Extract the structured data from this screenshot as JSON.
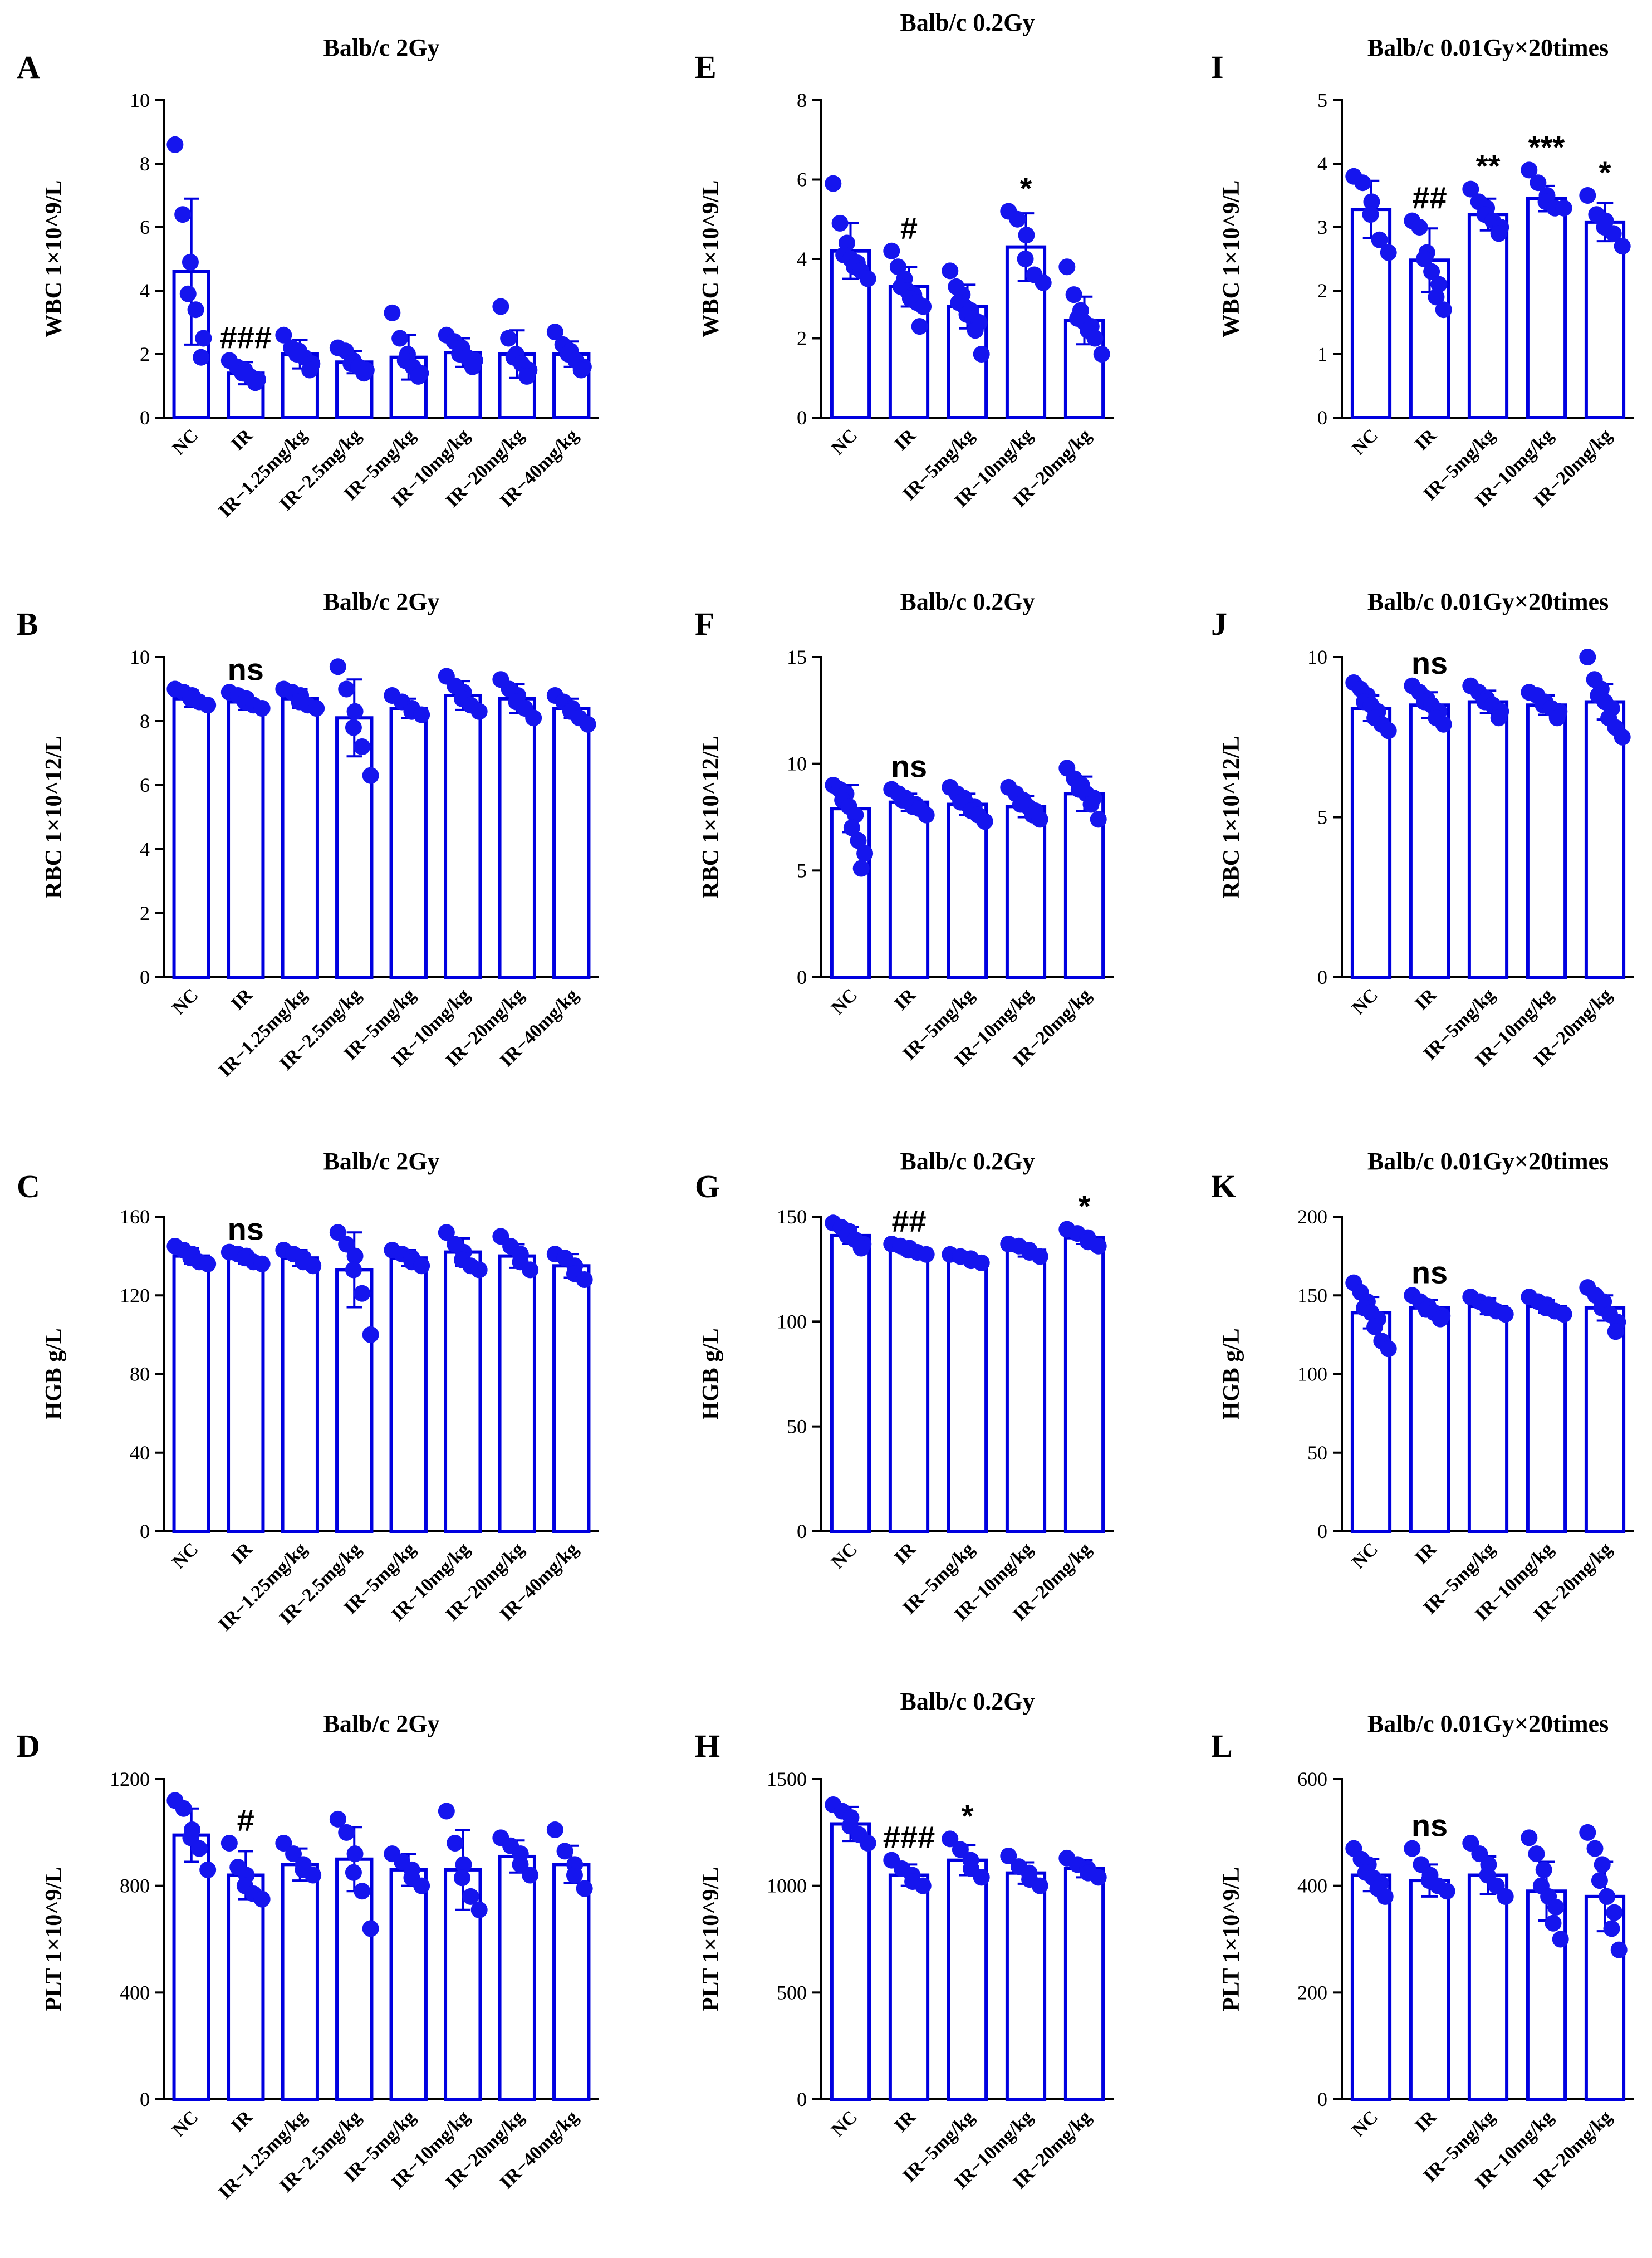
{
  "chart_data": [
    {
      "panel": "A",
      "type": "bar",
      "title": "Balb/c 2Gy",
      "ylabel": "WBC 1×10^9/L",
      "ylim": [
        0,
        10
      ],
      "yticks": [
        "0",
        "2",
        "4",
        "6",
        "8",
        "10"
      ],
      "categories": [
        "NC",
        "IR",
        "IR−1.25mg/kg",
        "IR−2.5mg/kg",
        "IR−5mg/kg",
        "IR−10mg/kg",
        "IR−20mg/kg",
        "IR−40mg/kg"
      ],
      "values": [
        4.6,
        1.4,
        2.0,
        1.75,
        1.9,
        2.05,
        2.0,
        2.0
      ],
      "errors": [
        2.3,
        0.35,
        0.45,
        0.35,
        0.7,
        0.45,
        0.75,
        0.4
      ],
      "points": [
        [
          8.6,
          6.4,
          4.9,
          3.9,
          3.4,
          2.5,
          1.9
        ],
        [
          1.8,
          1.6,
          1.5,
          1.4,
          1.3,
          1.2,
          1.1
        ],
        [
          2.6,
          2.2,
          2.1,
          2.0,
          1.9,
          1.7,
          1.5
        ],
        [
          2.2,
          2.1,
          1.8,
          1.7,
          1.6,
          1.5,
          1.4
        ],
        [
          3.3,
          2.5,
          2.0,
          1.8,
          1.6,
          1.4,
          1.3
        ],
        [
          2.6,
          2.4,
          2.2,
          2.0,
          1.9,
          1.8,
          1.6
        ],
        [
          3.5,
          2.5,
          2.0,
          1.9,
          1.7,
          1.5,
          1.3
        ],
        [
          2.7,
          2.3,
          2.1,
          2.0,
          1.8,
          1.6,
          1.5
        ]
      ],
      "annotations": [
        {
          "category": "IR",
          "text": "###"
        }
      ]
    },
    {
      "panel": "E",
      "type": "bar",
      "title": "Balb/c 0.2Gy",
      "ylabel": "WBC 1×10^9/L",
      "ylim": [
        0,
        8
      ],
      "yticks": [
        "0",
        "2",
        "4",
        "6",
        "8"
      ],
      "categories": [
        "NC",
        "IR",
        "IR−5mg/kg",
        "IR−10mg/kg",
        "IR−20mg/kg"
      ],
      "values": [
        4.2,
        3.3,
        2.8,
        4.3,
        2.45
      ],
      "errors": [
        0.7,
        0.5,
        0.55,
        0.85,
        0.6
      ],
      "points": [
        [
          5.9,
          4.9,
          4.4,
          4.1,
          4.0,
          3.9,
          3.8,
          3.7,
          3.5
        ],
        [
          4.2,
          3.8,
          3.5,
          3.3,
          3.2,
          3.1,
          3.0,
          2.9,
          2.8,
          2.3
        ],
        [
          3.7,
          3.3,
          3.1,
          2.9,
          2.8,
          2.7,
          2.6,
          2.5,
          2.4,
          2.2,
          1.6
        ],
        [
          5.2,
          5.0,
          4.6,
          4.0,
          3.6,
          3.4
        ],
        [
          3.8,
          3.1,
          2.7,
          2.5,
          2.4,
          2.3,
          2.2,
          2.0,
          1.6
        ]
      ],
      "annotations": [
        {
          "category": "IR",
          "text": "#"
        },
        {
          "category": "IR−10mg/kg",
          "text": "*"
        }
      ]
    },
    {
      "panel": "I",
      "type": "bar",
      "title": "Balb/c 0.01Gy×20times",
      "ylabel": "WBC 1×10^9/L",
      "ylim": [
        0,
        5
      ],
      "yticks": [
        "0",
        "1",
        "2",
        "3",
        "4",
        "5"
      ],
      "categories": [
        "NC",
        "IR",
        "IR−5mg/kg",
        "IR−10mg/kg",
        "IR−20mg/kg"
      ],
      "values": [
        3.28,
        2.48,
        3.2,
        3.45,
        3.08
      ],
      "errors": [
        0.45,
        0.5,
        0.25,
        0.2,
        0.3
      ],
      "points": [
        [
          3.8,
          3.7,
          3.4,
          3.2,
          2.8,
          2.6
        ],
        [
          3.1,
          3.0,
          2.6,
          2.5,
          2.3,
          2.1,
          1.9,
          1.7
        ],
        [
          3.6,
          3.4,
          3.3,
          3.2,
          3.1,
          3.0,
          2.9
        ],
        [
          3.9,
          3.7,
          3.5,
          3.4,
          3.3,
          3.3
        ],
        [
          3.5,
          3.2,
          3.1,
          3.0,
          2.9,
          2.7
        ]
      ],
      "annotations": [
        {
          "category": "IR",
          "text": "##"
        },
        {
          "category": "IR−5mg/kg",
          "text": "**"
        },
        {
          "category": "IR−10mg/kg",
          "text": "***"
        },
        {
          "category": "IR−20mg/kg",
          "text": "*"
        }
      ]
    },
    {
      "panel": "B",
      "type": "bar",
      "title": "Balb/c 2Gy",
      "ylabel": "RBC 1×10^12/L",
      "ylim": [
        0,
        10
      ],
      "yticks": [
        "0",
        "2",
        "4",
        "6",
        "8",
        "10"
      ],
      "categories": [
        "NC",
        "IR",
        "IR−1.25mg/kg",
        "IR−2.5mg/kg",
        "IR−5mg/kg",
        "IR−10mg/kg",
        "IR−20mg/kg",
        "IR−40mg/kg"
      ],
      "values": [
        8.7,
        8.6,
        8.7,
        8.1,
        8.4,
        8.8,
        8.7,
        8.4
      ],
      "errors": [
        0.25,
        0.25,
        0.3,
        1.2,
        0.3,
        0.45,
        0.45,
        0.3
      ],
      "points": [
        [
          9.0,
          8.9,
          8.8,
          8.7,
          8.6,
          8.5
        ],
        [
          8.9,
          8.8,
          8.7,
          8.6,
          8.5,
          8.4
        ],
        [
          9.0,
          8.9,
          8.8,
          8.6,
          8.5,
          8.4
        ],
        [
          9.7,
          9.0,
          8.3,
          7.8,
          7.2,
          6.3
        ],
        [
          8.8,
          8.6,
          8.4,
          8.3,
          8.2
        ],
        [
          9.4,
          9.1,
          8.9,
          8.7,
          8.5,
          8.3
        ],
        [
          9.3,
          9.0,
          8.8,
          8.6,
          8.4,
          8.1
        ],
        [
          8.8,
          8.6,
          8.4,
          8.3,
          8.1,
          7.9
        ]
      ],
      "annotations": [
        {
          "category": "IR",
          "text": "ns"
        }
      ]
    },
    {
      "panel": "F",
      "type": "bar",
      "title": "Balb/c 0.2Gy",
      "ylabel": "RBC 1×10^12/L",
      "ylim": [
        0,
        15
      ],
      "yticks": [
        "0",
        "5",
        "10",
        "15"
      ],
      "categories": [
        "NC",
        "IR",
        "IR−5mg/kg",
        "IR−10mg/kg",
        "IR−20mg/kg"
      ],
      "values": [
        7.9,
        8.2,
        8.1,
        8.0,
        8.6
      ],
      "errors": [
        1.1,
        0.4,
        0.5,
        0.5,
        0.8
      ],
      "points": [
        [
          9.0,
          8.8,
          8.6,
          8.3,
          8.0,
          7.6,
          7.0,
          6.4,
          5.8,
          5.1
        ],
        [
          8.8,
          8.6,
          8.4,
          8.3,
          8.2,
          8.1,
          8.0,
          7.9,
          7.6
        ],
        [
          8.9,
          8.6,
          8.4,
          8.2,
          8.1,
          8.0,
          7.8,
          7.6,
          7.3
        ],
        [
          8.9,
          8.6,
          8.3,
          8.1,
          8.0,
          7.8,
          7.6,
          7.4
        ],
        [
          9.8,
          9.3,
          9.0,
          8.8,
          8.6,
          8.4,
          8.1,
          7.4
        ]
      ],
      "annotations": [
        {
          "category": "IR",
          "text": "ns"
        }
      ]
    },
    {
      "panel": "J",
      "type": "bar",
      "title": "Balb/c 0.01Gy×20times",
      "ylabel": "RBC 1×10^12/L",
      "ylim": [
        0,
        10
      ],
      "yticks": [
        "0",
        "5",
        "10"
      ],
      "categories": [
        "NC",
        "IR",
        "IR−5mg/kg",
        "IR−10mg/kg",
        "IR−20mg/kg"
      ],
      "values": [
        8.4,
        8.5,
        8.6,
        8.5,
        8.6
      ],
      "errors": [
        0.4,
        0.4,
        0.35,
        0.3,
        0.55
      ],
      "points": [
        [
          9.2,
          9.0,
          8.8,
          8.6,
          8.5,
          8.3,
          8.1,
          7.9,
          7.7
        ],
        [
          9.1,
          8.9,
          8.7,
          8.6,
          8.5,
          8.3,
          8.1,
          7.9
        ],
        [
          9.1,
          8.9,
          8.7,
          8.6,
          8.5,
          8.3,
          8.1
        ],
        [
          8.9,
          8.8,
          8.6,
          8.5,
          8.4,
          8.3,
          8.1
        ],
        [
          10.0,
          9.3,
          9.0,
          8.8,
          8.6,
          8.4,
          8.1,
          7.8,
          7.5
        ]
      ],
      "annotations": [
        {
          "category": "IR",
          "text": "ns"
        }
      ]
    },
    {
      "panel": "C",
      "type": "bar",
      "title": "Balb/c 2Gy",
      "ylabel": "HGB g/L",
      "ylim": [
        0,
        160
      ],
      "yticks": [
        "0",
        "40",
        "80",
        "120",
        "160"
      ],
      "categories": [
        "NC",
        "IR",
        "IR−1.25mg/kg",
        "IR−2.5mg/kg",
        "IR−5mg/kg",
        "IR−10mg/kg",
        "IR−20mg/kg",
        "IR−40mg/kg"
      ],
      "values": [
        140,
        139,
        139,
        133,
        139,
        142,
        140,
        135
      ],
      "errors": [
        4,
        3,
        4,
        19,
        4,
        7,
        6,
        6
      ],
      "points": [
        [
          145,
          143,
          141,
          139,
          137,
          136
        ],
        [
          142,
          141,
          140,
          139,
          137,
          136
        ],
        [
          143,
          141,
          139,
          137,
          135
        ],
        [
          152,
          146,
          140,
          133,
          121,
          100
        ],
        [
          143,
          141,
          139,
          137,
          135
        ],
        [
          152,
          146,
          142,
          138,
          135,
          133
        ],
        [
          150,
          145,
          141,
          137,
          133
        ],
        [
          141,
          139,
          135,
          131,
          128
        ]
      ],
      "annotations": [
        {
          "category": "IR",
          "text": "ns"
        }
      ]
    },
    {
      "panel": "G",
      "type": "bar",
      "title": "Balb/c 0.2Gy",
      "ylabel": "HGB g/L",
      "ylim": [
        0,
        150
      ],
      "yticks": [
        "0",
        "50",
        "100",
        "150"
      ],
      "categories": [
        "NC",
        "IR",
        "IR−5mg/kg",
        "IR−10mg/kg",
        "IR−20mg/kg"
      ],
      "values": [
        141,
        134,
        130,
        134,
        140
      ],
      "errors": [
        4,
        2,
        2,
        3,
        3
      ],
      "points": [
        [
          147,
          145,
          143,
          141,
          139,
          137,
          135
        ],
        [
          137,
          136,
          135,
          134,
          133,
          132
        ],
        [
          132,
          131,
          130,
          129,
          128
        ],
        [
          137,
          136,
          134,
          133,
          131
        ],
        [
          144,
          142,
          140,
          138,
          136
        ]
      ],
      "annotations": [
        {
          "category": "IR",
          "text": "##"
        },
        {
          "category": "IR−20mg/kg",
          "text": "*"
        }
      ]
    },
    {
      "panel": "K",
      "type": "bar",
      "title": "Balb/c 0.01Gy×20times",
      "ylabel": "HGB g/L",
      "ylim": [
        0,
        200
      ],
      "yticks": [
        "0",
        "50",
        "100",
        "150",
        "200"
      ],
      "categories": [
        "NC",
        "IR",
        "IR−5mg/kg",
        "IR−10mg/kg",
        "IR−20mg/kg"
      ],
      "values": [
        139,
        142,
        143,
        143,
        142
      ],
      "errors": [
        10,
        5,
        5,
        4,
        8
      ],
      "points": [
        [
          158,
          152,
          146,
          142,
          139,
          135,
          130,
          121,
          116
        ],
        [
          150,
          146,
          143,
          141,
          139,
          137,
          135
        ],
        [
          149,
          146,
          144,
          142,
          140,
          138
        ],
        [
          149,
          146,
          144,
          142,
          140,
          138
        ],
        [
          155,
          150,
          146,
          142,
          138,
          133,
          127
        ]
      ],
      "annotations": [
        {
          "category": "IR",
          "text": "ns"
        }
      ]
    },
    {
      "panel": "D",
      "type": "bar",
      "title": "Balb/c 2Gy",
      "ylabel": "PLT 1×10^9/L",
      "ylim": [
        0,
        1200
      ],
      "yticks": [
        "0",
        "400",
        "800",
        "1200"
      ],
      "categories": [
        "NC",
        "IR",
        "IR−1.25mg/kg",
        "IR−2.5mg/kg",
        "IR−5mg/kg",
        "IR−10mg/kg",
        "IR−20mg/kg",
        "IR−40mg/kg"
      ],
      "values": [
        990,
        840,
        880,
        900,
        860,
        860,
        910,
        880
      ],
      "errors": [
        100,
        90,
        60,
        120,
        60,
        150,
        60,
        70
      ],
      "points": [
        [
          1120,
          1090,
          1010,
          980,
          940,
          860
        ],
        [
          960,
          870,
          840,
          800,
          770,
          750
        ],
        [
          960,
          920,
          880,
          860,
          840
        ],
        [
          1050,
          1000,
          920,
          850,
          780,
          640
        ],
        [
          920,
          890,
          860,
          830,
          800
        ],
        [
          1080,
          960,
          880,
          830,
          760,
          710
        ],
        [
          980,
          950,
          920,
          880,
          840
        ],
        [
          1010,
          930,
          880,
          840,
          790
        ]
      ],
      "annotations": [
        {
          "category": "IR",
          "text": "#"
        }
      ]
    },
    {
      "panel": "H",
      "type": "bar",
      "title": "Balb/c 0.2Gy",
      "ylabel": "PLT 1×10^9/L",
      "ylim": [
        0,
        1500
      ],
      "yticks": [
        "0",
        "500",
        "1000",
        "1500"
      ],
      "categories": [
        "NC",
        "IR",
        "IR−5mg/kg",
        "IR−10mg/kg",
        "IR−20mg/kg"
      ],
      "values": [
        1290,
        1050,
        1120,
        1060,
        1080
      ],
      "errors": [
        80,
        50,
        70,
        50,
        40
      ],
      "points": [
        [
          1380,
          1350,
          1320,
          1280,
          1240,
          1200
        ],
        [
          1120,
          1080,
          1050,
          1020,
          1000
        ],
        [
          1220,
          1170,
          1120,
          1080,
          1040
        ],
        [
          1140,
          1090,
          1060,
          1030,
          1000
        ],
        [
          1130,
          1100,
          1080,
          1060,
          1040
        ]
      ],
      "annotations": [
        {
          "category": "IR",
          "text": "###"
        },
        {
          "category": "IR−5mg/kg",
          "text": "*"
        }
      ]
    },
    {
      "panel": "L",
      "type": "bar",
      "title": "Balb/c 0.01Gy×20times",
      "ylabel": "PLT 1×10^9/L",
      "ylim": [
        0,
        600
      ],
      "yticks": [
        "0",
        "200",
        "400",
        "600"
      ],
      "categories": [
        "NC",
        "IR",
        "IR−5mg/kg",
        "IR−10mg/kg",
        "IR−20mg/kg"
      ],
      "values": [
        420,
        410,
        420,
        390,
        380
      ],
      "errors": [
        30,
        30,
        35,
        55,
        65
      ],
      "points": [
        [
          470,
          450,
          440,
          425,
          415,
          405,
          395,
          380
        ],
        [
          470,
          440,
          420,
          410,
          400,
          390
        ],
        [
          480,
          460,
          440,
          420,
          400,
          380
        ],
        [
          490,
          460,
          430,
          400,
          380,
          360,
          330,
          300
        ],
        [
          500,
          470,
          440,
          410,
          380,
          350,
          320,
          280
        ]
      ],
      "annotations": [
        {
          "category": "IR",
          "text": "ns"
        }
      ]
    }
  ]
}
